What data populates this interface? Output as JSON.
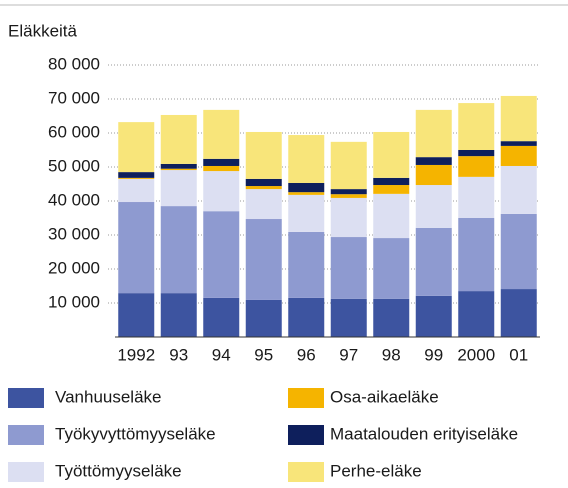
{
  "chart_data": {
    "type": "stacked_bar",
    "y_label": "Eläkkeitä",
    "categories": [
      "1992",
      "93",
      "94",
      "95",
      "96",
      "97",
      "98",
      "99",
      "2000",
      "01"
    ],
    "series": [
      {
        "name": "Vanhuuseläke",
        "color": "#3d54a0",
        "values": [
          12900,
          12900,
          11500,
          10900,
          11500,
          11200,
          11200,
          12100,
          13500,
          14100
        ]
      },
      {
        "name": "Työkyvyttömyyseläke",
        "color": "#8e9ad0",
        "values": [
          26800,
          25600,
          25500,
          23800,
          19400,
          18200,
          17900,
          20000,
          21500,
          22100
        ]
      },
      {
        "name": "Työttömyyseläke",
        "color": "#dcdff2",
        "values": [
          6800,
          10600,
          11800,
          8800,
          10900,
          11500,
          13000,
          12600,
          12100,
          14100
        ]
      },
      {
        "name": "Osa-aikaeläke",
        "color": "#f5b400",
        "values": [
          300,
          400,
          1500,
          900,
          800,
          1100,
          2600,
          5900,
          6100,
          5900
        ]
      },
      {
        "name": "Maatalouden erityiseläke",
        "color": "#0e1f5c",
        "values": [
          1700,
          1400,
          2100,
          2100,
          2700,
          1500,
          2100,
          2300,
          1800,
          1400
        ]
      },
      {
        "name": "Perhe-eläke",
        "color": "#f8e57a",
        "values": [
          14700,
          14400,
          14400,
          13800,
          14100,
          13900,
          13500,
          13900,
          13800,
          13300
        ]
      }
    ],
    "ylim": [
      0,
      80000
    ],
    "yticks": [
      {
        "value": 10000,
        "label": "10 000"
      },
      {
        "value": 20000,
        "label": "20 000"
      },
      {
        "value": 30000,
        "label": "30 000"
      },
      {
        "value": 40000,
        "label": "40 000"
      },
      {
        "value": 50000,
        "label": "50 000"
      },
      {
        "value": 60000,
        "label": "60 000"
      },
      {
        "value": 70000,
        "label": "70 000"
      },
      {
        "value": 80000,
        "label": "80 000"
      }
    ],
    "grid": true
  }
}
